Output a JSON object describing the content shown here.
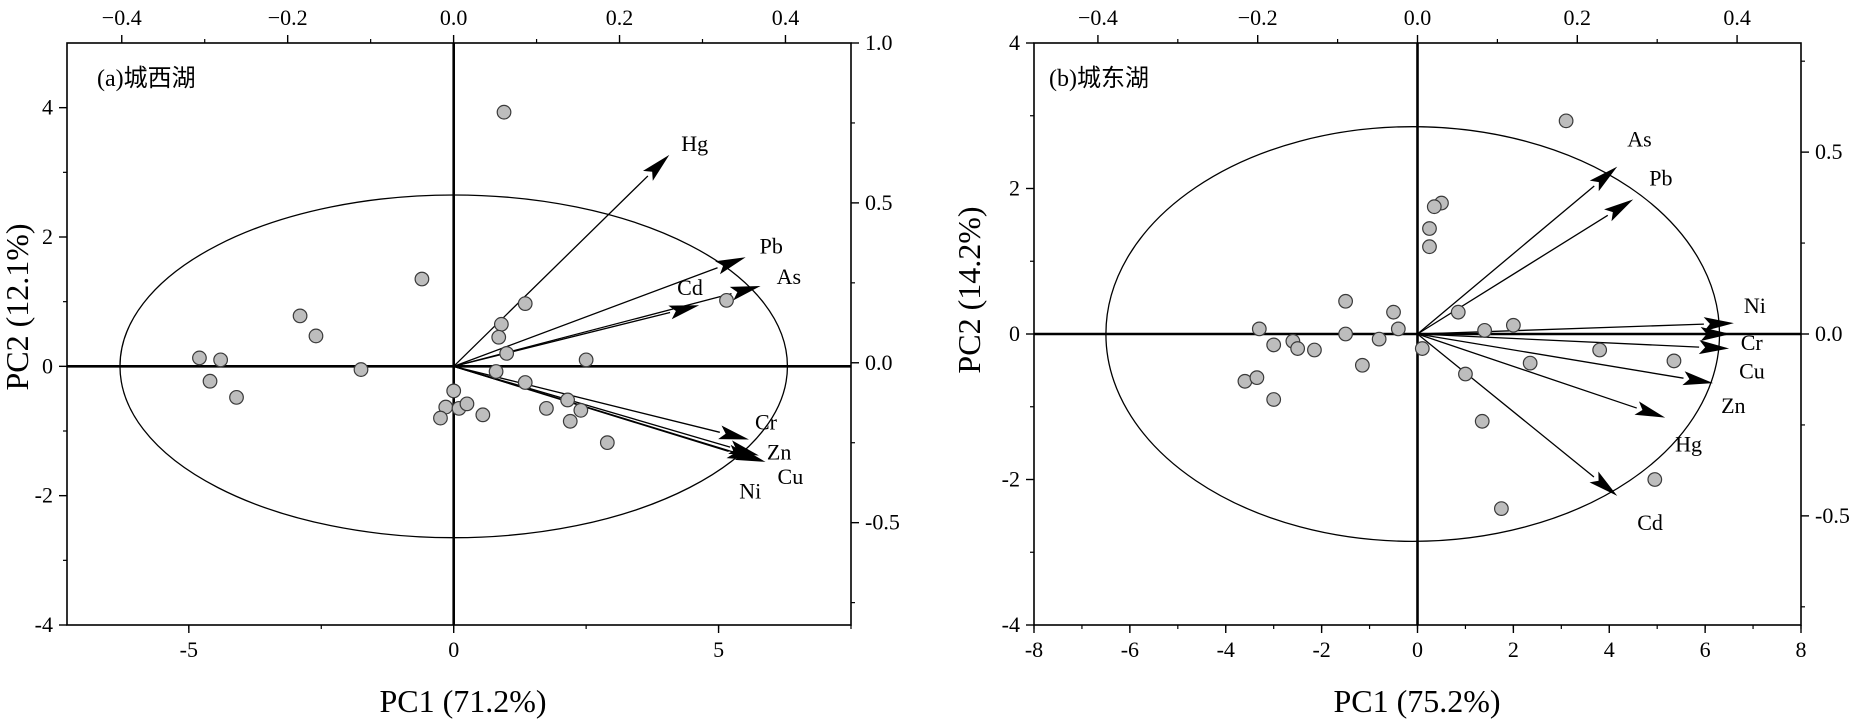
{
  "figure": {
    "panels": [
      {
        "label": "(a)城西湖"
      },
      {
        "label": "(b)城东湖"
      }
    ]
  },
  "chart_data": [
    {
      "type": "scatter",
      "subtype": "pca-biplot",
      "panel_label": "(a)城西湖",
      "xlabel": "PC1 (71.2%)",
      "ylabel": "PC2 (12.1%)",
      "xlim": [
        -7.3,
        7.5
      ],
      "ylim": [
        -4,
        5
      ],
      "x_ticks": [
        -5,
        0,
        5
      ],
      "x_tick_labels": [
        "-5",
        "0",
        "5"
      ],
      "y_ticks": [
        -4,
        -2,
        0,
        2,
        4
      ],
      "y_tick_labels": [
        "-4",
        "-2",
        "0",
        "2",
        "4"
      ],
      "top_axis": {
        "lim": [
          -0.466,
          0.479
        ],
        "ticks": [
          -0.4,
          -0.2,
          0.0,
          0.2,
          0.4
        ],
        "tick_labels": [
          "−0.4",
          "−0.2",
          "0.0",
          "0.2",
          "0.4"
        ]
      },
      "right_axis": {
        "lim": [
          -0.82,
          1.0
        ],
        "ticks": [
          -0.5,
          0.0,
          0.5,
          1.0
        ],
        "tick_labels": [
          "-0.5",
          "0.0",
          "0.5",
          "1.0"
        ]
      },
      "ellipse": {
        "cx": 0,
        "cy": 0,
        "rx": 6.3,
        "ry": 2.65
      },
      "scores": [
        {
          "x": 0.95,
          "y": 3.93
        },
        {
          "x": -0.6,
          "y": 1.35
        },
        {
          "x": 1.35,
          "y": 0.97
        },
        {
          "x": -2.9,
          "y": 0.78
        },
        {
          "x": -2.6,
          "y": 0.47
        },
        {
          "x": 0.9,
          "y": 0.65
        },
        {
          "x": 0.85,
          "y": 0.45
        },
        {
          "x": 1.0,
          "y": 0.2
        },
        {
          "x": 5.15,
          "y": 1.02
        },
        {
          "x": -4.8,
          "y": 0.13
        },
        {
          "x": -4.4,
          "y": 0.1
        },
        {
          "x": -1.75,
          "y": -0.05
        },
        {
          "x": 2.5,
          "y": 0.1
        },
        {
          "x": -4.6,
          "y": -0.23
        },
        {
          "x": -4.1,
          "y": -0.48
        },
        {
          "x": 0.8,
          "y": -0.08
        },
        {
          "x": 1.35,
          "y": -0.25
        },
        {
          "x": 0.0,
          "y": -0.38
        },
        {
          "x": -0.15,
          "y": -0.63
        },
        {
          "x": 0.1,
          "y": -0.65
        },
        {
          "x": 0.25,
          "y": -0.58
        },
        {
          "x": -0.25,
          "y": -0.8
        },
        {
          "x": 0.55,
          "y": -0.75
        },
        {
          "x": 1.75,
          "y": -0.65
        },
        {
          "x": 2.15,
          "y": -0.52
        },
        {
          "x": 2.4,
          "y": -0.68
        },
        {
          "x": 2.2,
          "y": -0.85
        },
        {
          "x": 2.9,
          "y": -1.18
        }
      ],
      "loadings": [
        {
          "name": "Hg",
          "x": 0.26,
          "y": 0.65
        },
        {
          "name": "Pb",
          "x": 0.352,
          "y": 0.33
        },
        {
          "name": "As",
          "x": 0.37,
          "y": 0.24
        },
        {
          "name": "Cd",
          "x": 0.296,
          "y": 0.18
        },
        {
          "name": "Cr",
          "x": 0.356,
          "y": -0.24
        },
        {
          "name": "Zn",
          "x": 0.368,
          "y": -0.29
        },
        {
          "name": "Cu",
          "x": 0.376,
          "y": -0.31
        },
        {
          "name": "Ni",
          "x": 0.366,
          "y": -0.305
        }
      ]
    },
    {
      "type": "scatter",
      "subtype": "pca-biplot",
      "panel_label": "(b)城东湖",
      "xlabel": "PC1 (75.2%)",
      "ylabel": "PC2 (14.2%)",
      "xlim": [
        -8,
        8
      ],
      "ylim": [
        -4,
        4
      ],
      "x_ticks": [
        -8,
        -6,
        -4,
        -2,
        0,
        2,
        4,
        6,
        8
      ],
      "x_tick_labels": [
        "-8",
        "-6",
        "-4",
        "-2",
        "0",
        "2",
        "4",
        "6",
        "8"
      ],
      "y_ticks": [
        -4,
        -2,
        0,
        2,
        4
      ],
      "y_tick_labels": [
        "-4",
        "-2",
        "0",
        "2",
        "4"
      ],
      "top_axis": {
        "lim": [
          -0.48,
          0.48
        ],
        "ticks": [
          -0.4,
          -0.2,
          0.0,
          0.2,
          0.4
        ],
        "tick_labels": [
          "−0.4",
          "−0.2",
          "0.0",
          "0.2",
          "0.4"
        ]
      },
      "right_axis": {
        "lim": [
          -0.8,
          0.8
        ],
        "ticks": [
          -0.5,
          0.0,
          0.5
        ],
        "tick_labels": [
          "-0.5",
          "0.0",
          "0.5"
        ]
      },
      "ellipse": {
        "cx": -0.1,
        "cy": 0,
        "rx": 6.4,
        "ry": 2.85
      },
      "scores": [
        {
          "x": 3.1,
          "y": 2.93
        },
        {
          "x": 0.5,
          "y": 1.8
        },
        {
          "x": 0.35,
          "y": 1.75
        },
        {
          "x": 0.25,
          "y": 1.45
        },
        {
          "x": 0.25,
          "y": 1.2
        },
        {
          "x": -1.5,
          "y": 0.45
        },
        {
          "x": -0.5,
          "y": 0.3
        },
        {
          "x": 0.85,
          "y": 0.3
        },
        {
          "x": -3.3,
          "y": 0.07
        },
        {
          "x": -1.5,
          "y": 0.0
        },
        {
          "x": -0.4,
          "y": 0.07
        },
        {
          "x": 1.4,
          "y": 0.05
        },
        {
          "x": 2.0,
          "y": 0.12
        },
        {
          "x": -3.0,
          "y": -0.15
        },
        {
          "x": -2.6,
          "y": -0.1
        },
        {
          "x": -2.5,
          "y": -0.2
        },
        {
          "x": -2.15,
          "y": -0.22
        },
        {
          "x": -0.8,
          "y": -0.07
        },
        {
          "x": 0.1,
          "y": -0.2
        },
        {
          "x": -3.6,
          "y": -0.65
        },
        {
          "x": -3.35,
          "y": -0.6
        },
        {
          "x": -3.0,
          "y": -0.9
        },
        {
          "x": -1.15,
          "y": -0.43
        },
        {
          "x": 1.0,
          "y": -0.55
        },
        {
          "x": 2.35,
          "y": -0.4
        },
        {
          "x": 3.8,
          "y": -0.22
        },
        {
          "x": 5.35,
          "y": -0.37
        },
        {
          "x": 1.35,
          "y": -1.2
        },
        {
          "x": 4.95,
          "y": -2.0
        },
        {
          "x": 1.75,
          "y": -2.4
        }
      ],
      "loadings": [
        {
          "name": "As",
          "x": 0.25,
          "y": 0.46
        },
        {
          "name": "Pb",
          "x": 0.27,
          "y": 0.37
        },
        {
          "name": "Ni",
          "x": 0.396,
          "y": 0.03
        },
        {
          "name": "Cr",
          "x": 0.392,
          "y": 0.0
        },
        {
          "name": "Cu",
          "x": 0.39,
          "y": -0.04
        },
        {
          "name": "Zn",
          "x": 0.37,
          "y": -0.135
        },
        {
          "name": "Hg",
          "x": 0.31,
          "y": -0.23
        },
        {
          "name": "Cd",
          "x": 0.25,
          "y": -0.445
        }
      ]
    }
  ]
}
